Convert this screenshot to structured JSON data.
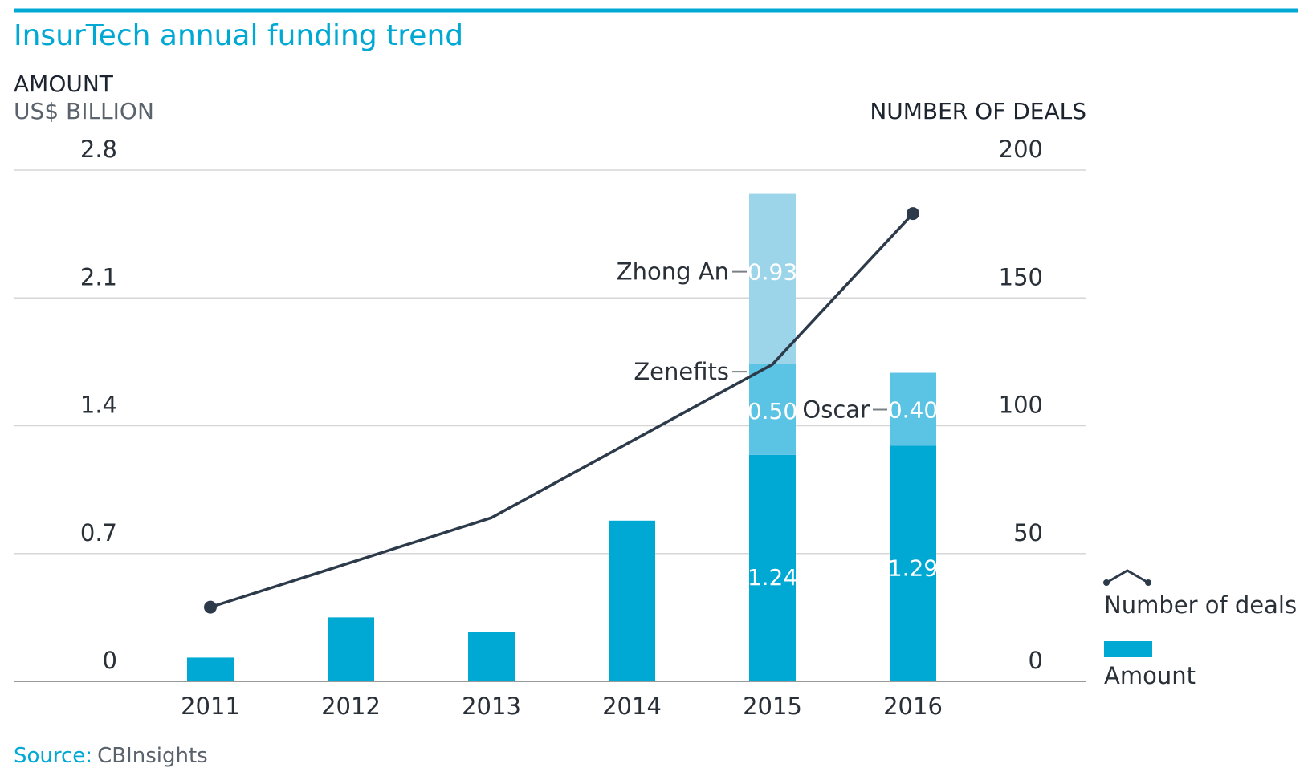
{
  "chart_data": {
    "type": "bar",
    "title": "InsurTech annual funding trend",
    "y_left_label": "AMOUNT",
    "y_left_unit": "US$ BILLION",
    "y_right_label": "NUMBER OF DEALS",
    "categories": [
      "2011",
      "2012",
      "2013",
      "2014",
      "2015",
      "2016"
    ],
    "y_left_ticks": [
      "0",
      "0.7",
      "1.4",
      "2.1",
      "2.8"
    ],
    "y_right_ticks": [
      "0",
      "50",
      "100",
      "150",
      "200"
    ],
    "ylim_left": [
      0,
      2.8
    ],
    "ylim_right": [
      0,
      200
    ],
    "grid": true,
    "legend_position": "right",
    "bars": [
      {
        "year": "2011",
        "segments": [
          {
            "value": 0.13,
            "label": "",
            "color": "#00a8d4"
          }
        ]
      },
      {
        "year": "2012",
        "segments": [
          {
            "value": 0.35,
            "label": "",
            "color": "#00a8d4"
          }
        ]
      },
      {
        "year": "2013",
        "segments": [
          {
            "value": 0.27,
            "label": "",
            "color": "#00a8d4"
          }
        ]
      },
      {
        "year": "2014",
        "segments": [
          {
            "value": 0.88,
            "label": "",
            "color": "#00a8d4"
          }
        ]
      },
      {
        "year": "2015",
        "segments": [
          {
            "value": 1.24,
            "label": "1.24",
            "color": "#00a8d4"
          },
          {
            "value": 0.5,
            "label": "0.50",
            "color": "#5bc3e3",
            "annotation": "Zenefits"
          },
          {
            "value": 0.93,
            "label": "0.93",
            "color": "#9cd5e9",
            "annotation": "Zhong An"
          }
        ]
      },
      {
        "year": "2016",
        "segments": [
          {
            "value": 1.29,
            "label": "1.29",
            "color": "#00a8d4"
          },
          {
            "value": 0.4,
            "label": "0.40",
            "color": "#5bc3e3",
            "annotation": "Oscar"
          }
        ]
      }
    ],
    "line_series": {
      "name": "Number of deals",
      "color": "#2c3a4a",
      "values": [
        29,
        null,
        64,
        null,
        124,
        183
      ]
    },
    "legend": [
      {
        "name": "Number of deals",
        "kind": "line",
        "color": "#2c3a4a"
      },
      {
        "name": "Amount",
        "kind": "bar",
        "color": "#00a8d4"
      }
    ],
    "source_key": "Source:",
    "source_value": "CBInsights",
    "colors": {
      "accent": "#00a8d4",
      "grid": "#d6d6d6",
      "axis": "#9a9a9a",
      "line": "#2c3a4a"
    }
  }
}
